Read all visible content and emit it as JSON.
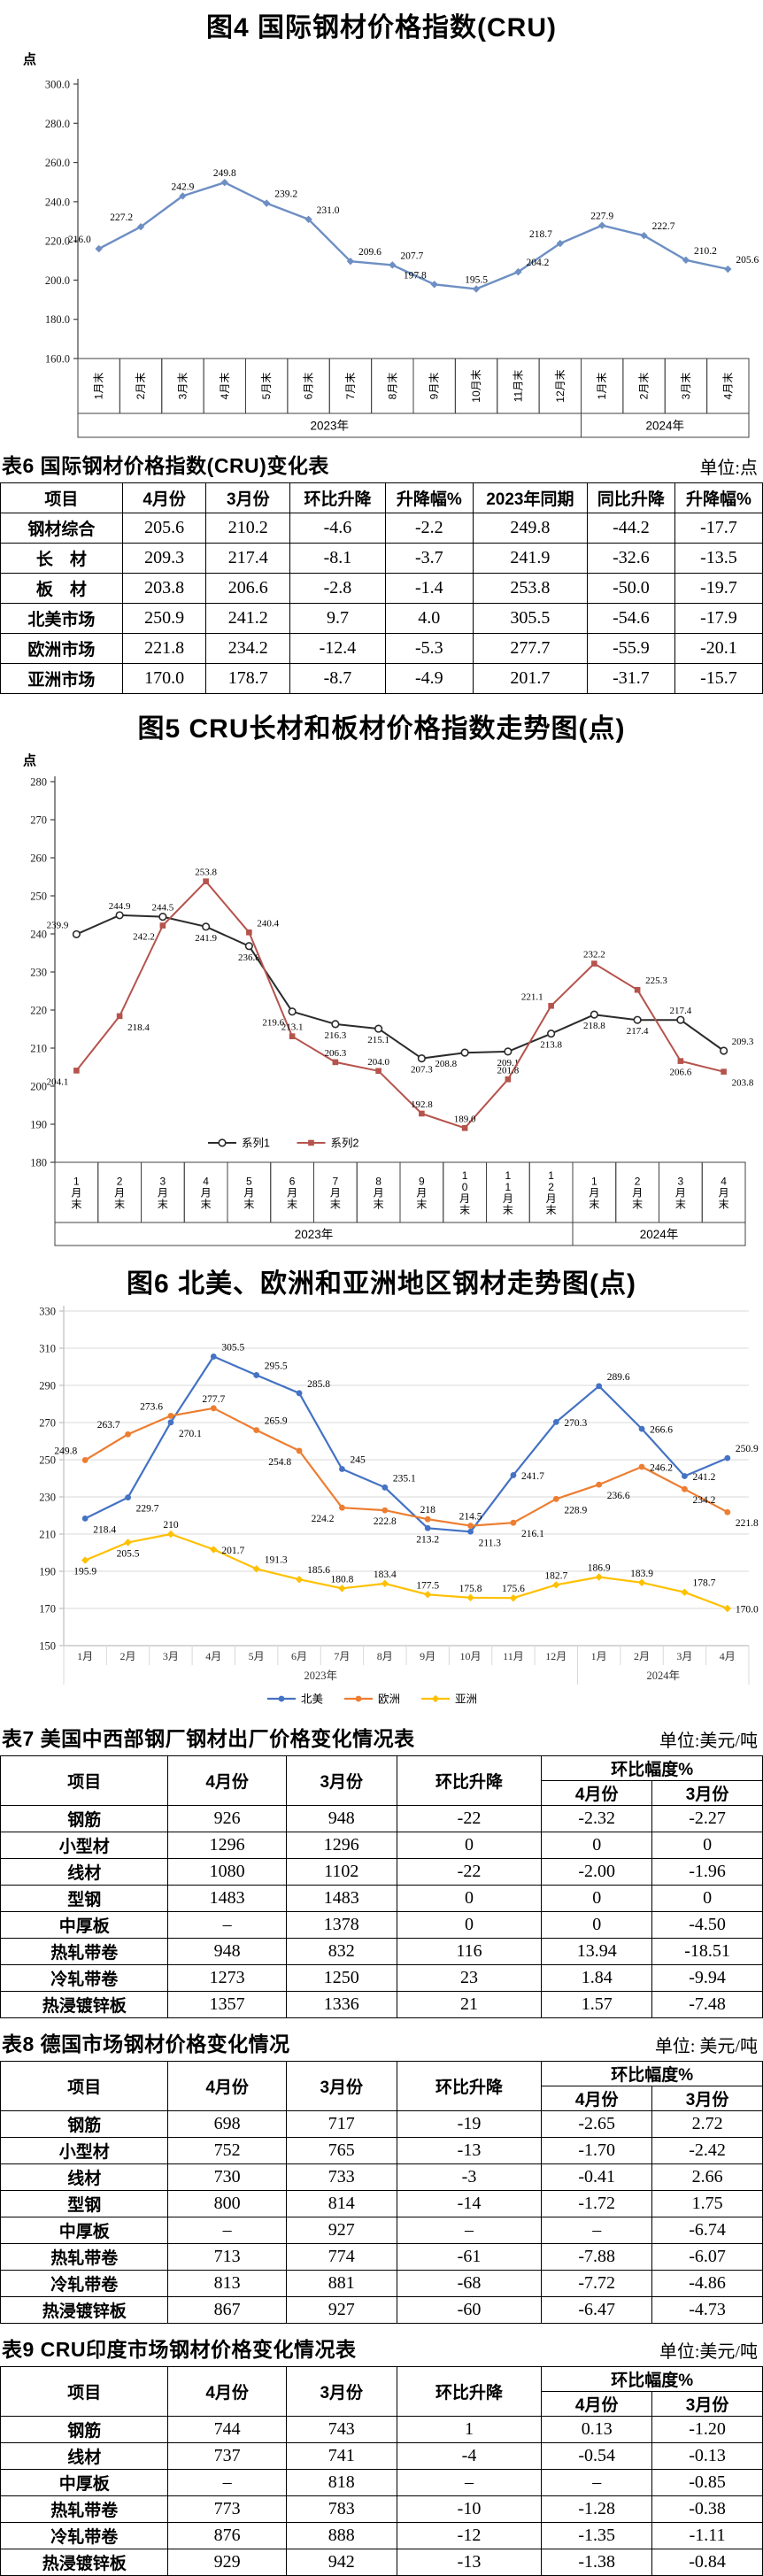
{
  "chart_data": {
    "fig4": {
      "type": "line",
      "title": "图4  国际钢材价格指数(CRU)",
      "unit": "点",
      "y_ticks": [
        "300.0",
        "280.0",
        "260.0",
        "240.0",
        "220.0",
        "200.0",
        "180.0",
        "160.0"
      ],
      "x_months_2023": [
        "1月末",
        "2月末",
        "3月末",
        "4月末",
        "5月末",
        "6月末",
        "7月末",
        "8月末",
        "9月末",
        "10月末",
        "11月末",
        "12月末"
      ],
      "x_months_2024": [
        "1月末",
        "2月末",
        "3月末",
        "4月末"
      ],
      "years": [
        {
          "label": "2023年",
          "span": 12
        },
        {
          "label": "2024年",
          "span": 4
        }
      ],
      "series": [
        {
          "name": "国际钢材价格指数",
          "color": "#6d8fc3",
          "marker": "diamond",
          "values": [
            216.0,
            227.2,
            242.9,
            249.8,
            239.2,
            231.0,
            209.6,
            207.7,
            197.8,
            195.5,
            204.2,
            218.7,
            227.9,
            222.7,
            210.2,
            205.6
          ],
          "labels": [
            "216.0",
            "227.2",
            "242.9",
            "249.8",
            "239.2",
            "231.0",
            "209.6",
            "207.7",
            "197.8",
            "195.5",
            "204.2",
            "218.7",
            "227.9",
            "222.7",
            "210.2",
            "205.6"
          ],
          "label_pos": [
            "al",
            "al",
            "a",
            "a",
            "ar",
            "ar",
            "ar",
            "ar",
            "al",
            "a",
            "ar",
            "al",
            "a",
            "ar",
            "ar",
            "ar"
          ]
        }
      ]
    },
    "fig5": {
      "type": "line",
      "title": "图5  CRU长材和板材价格指数走势图(点)",
      "unit": "点",
      "y_ticks": [
        "280",
        "270",
        "260",
        "250",
        "240",
        "230",
        "220",
        "210",
        "200",
        "190",
        "180"
      ],
      "x_months_2023": [
        "1月末",
        "2月末",
        "3月末",
        "4月末",
        "5月末",
        "6月末",
        "7月末",
        "8月末",
        "9月末",
        "10月末",
        "11月末",
        "12月末"
      ],
      "x_months_2024": [
        "1月末",
        "2月末",
        "3月末",
        "4月末"
      ],
      "years": [
        {
          "label": "2023年",
          "span": 12
        },
        {
          "label": "2024年",
          "span": 4
        }
      ],
      "series": [
        {
          "name": "系列1",
          "color": "#2b2b2b",
          "marker": "ocircle",
          "values": [
            239.9,
            244.9,
            244.5,
            241.9,
            236.8,
            219.6,
            216.3,
            215.1,
            207.3,
            208.8,
            209.1,
            213.8,
            218.8,
            217.4,
            217.4,
            209.3
          ],
          "labels": [
            "239.9",
            "244.9",
            "244.5",
            "241.9",
            "236.8",
            "219.6",
            "216.3",
            "215.1",
            "207.3",
            "208.8",
            "209.1",
            "213.8",
            "218.8",
            "217.4",
            "217.4",
            "209.3"
          ],
          "label_pos": [
            "al",
            "a",
            "a",
            "b",
            "b",
            "bl",
            "b",
            "b",
            "b",
            "bl",
            "b",
            "b",
            "b",
            "b",
            "a",
            "ar"
          ]
        },
        {
          "name": "系列2",
          "color": "#b5534c",
          "marker": "square",
          "values": [
            204.1,
            218.4,
            242.2,
            253.8,
            240.4,
            213.1,
            206.3,
            204.0,
            192.8,
            189.0,
            201.8,
            221.1,
            232.2,
            225.3,
            206.6,
            203.8
          ],
          "labels": [
            "204.1",
            "218.4",
            "242.2",
            "253.8",
            "240.4",
            "213.1",
            "206.3",
            "204.0",
            "192.8",
            "189.0",
            "201.8",
            "221.1",
            "232.2",
            "225.3",
            "206.6",
            "203.8"
          ],
          "label_pos": [
            "bl",
            "br",
            "bl",
            "a",
            "ar",
            "a",
            "a",
            "a",
            "a",
            "a",
            "a",
            "al",
            "a",
            "ar",
            "b",
            "br"
          ]
        }
      ]
    },
    "fig6": {
      "type": "line",
      "title": "图6  北美、欧洲和亚洲地区钢材走势图(点)",
      "unit": "",
      "y_ticks": [
        "330",
        "310",
        "290",
        "270",
        "250",
        "230",
        "210",
        "190",
        "170",
        "150"
      ],
      "x_months_2023": [
        "1月",
        "2月",
        "3月",
        "4月",
        "5月",
        "6月",
        "7月",
        "8月",
        "9月",
        "10月",
        "11月",
        "12月"
      ],
      "x_months_2024": [
        "1月",
        "2月",
        "3月",
        "4月"
      ],
      "years": [
        {
          "label": "2023年",
          "span": 12
        },
        {
          "label": "2024年",
          "span": 4
        }
      ],
      "series": [
        {
          "name": "北美",
          "color": "#4472c4",
          "marker": "circle",
          "values": [
            218.4,
            229.7,
            270.1,
            305.5,
            295.5,
            285.8,
            245,
            235.1,
            213.2,
            211.3,
            241.7,
            270.3,
            289.6,
            266.6,
            241.2,
            250.9
          ],
          "labels": [
            "218.4",
            "229.7",
            "270.1",
            "305.5",
            "295.5",
            "285.8",
            "245",
            "235.1",
            "213.2",
            "211.3",
            "241.7",
            "270.3",
            "289.6",
            "266.6",
            "241.2",
            "250.9"
          ],
          "label_pos": [
            "br",
            "br",
            "br",
            "ar",
            "ar",
            "ar",
            "ar",
            "ar",
            "b",
            "br",
            "r",
            "r",
            "ar",
            "r",
            "r",
            "ar"
          ]
        },
        {
          "name": "欧洲",
          "color": "#ed7d31",
          "marker": "circle",
          "values": [
            249.8,
            263.7,
            273.6,
            277.7,
            265.9,
            254.8,
            224.2,
            222.8,
            218,
            214.5,
            216.1,
            228.9,
            236.6,
            246.2,
            234.2,
            221.8
          ],
          "labels": [
            "249.8",
            "263.7",
            "273.6",
            "277.7",
            "265.9",
            "254.8",
            "224.2",
            "222.8",
            "218",
            "214.5",
            "216.1",
            "228.9",
            "236.6",
            "246.2",
            "234.2",
            "221.8"
          ],
          "label_pos": [
            "al",
            "al",
            "al",
            "a",
            "ar",
            "bl",
            "bl",
            "b",
            "a",
            "a",
            "br",
            "br",
            "br",
            "r",
            "br",
            "br"
          ]
        },
        {
          "name": "亚洲",
          "color": "#ffc000",
          "marker": "diamond",
          "values": [
            195.9,
            205.5,
            210,
            201.7,
            191.3,
            185.6,
            180.8,
            183.4,
            177.5,
            175.8,
            175.6,
            182.7,
            186.9,
            183.9,
            178.7,
            170.0
          ],
          "labels": [
            "195.9",
            "205.5",
            "210",
            "201.7",
            "191.3",
            "185.6",
            "180.8",
            "183.4",
            "177.5",
            "175.8",
            "175.6",
            "182.7",
            "186.9",
            "183.9",
            "178.7",
            "170.0"
          ],
          "label_pos": [
            "b",
            "b",
            "a",
            "r",
            "ar",
            "ar",
            "a",
            "a",
            "a",
            "a",
            "a",
            "a",
            "a",
            "a",
            "ar",
            "r"
          ]
        }
      ]
    }
  },
  "tables": {
    "table6": {
      "title": "表6  国际钢材价格指数(CRU)变化表",
      "unit": "单位:点",
      "columns": [
        "项目",
        "4月份",
        "3月份",
        "环比升降",
        "升降幅%",
        "2023年同期",
        "同比升降",
        "升降幅%"
      ],
      "col_widths": [
        "16%",
        "11%",
        "11%",
        "12.5%",
        "11.5%",
        "15%",
        "11.5%",
        "11.5%"
      ],
      "rows": [
        [
          "钢材综合",
          "205.6",
          "210.2",
          "-4.6",
          "-2.2",
          "249.8",
          "-44.2",
          "-17.7"
        ],
        [
          "长　材",
          "209.3",
          "217.4",
          "-8.1",
          "-3.7",
          "241.9",
          "-32.6",
          "-13.5"
        ],
        [
          "板　材",
          "203.8",
          "206.6",
          "-2.8",
          "-1.4",
          "253.8",
          "-50.0",
          "-19.7"
        ],
        [
          "北美市场",
          "250.9",
          "241.2",
          "9.7",
          "4.0",
          "305.5",
          "-54.6",
          "-17.9"
        ],
        [
          "欧洲市场",
          "221.8",
          "234.2",
          "-12.4",
          "-5.3",
          "277.7",
          "-55.9",
          "-20.1"
        ],
        [
          "亚洲市场",
          "170.0",
          "178.7",
          "-8.7",
          "-4.9",
          "201.7",
          "-31.7",
          "-15.7"
        ]
      ]
    },
    "table7": {
      "title": "表7  美国中西部钢厂钢材出厂价格变化情况表",
      "unit": "单位:美元/吨",
      "header": {
        "cols": [
          "项目",
          "4月份",
          "3月份",
          "环比升降"
        ],
        "group": "环比幅度%",
        "group_cols": [
          "4月份",
          "3月份"
        ]
      },
      "col_widths": [
        "22%",
        "15.5%",
        "14.5%",
        "19%",
        "14.5%",
        "14.5%"
      ],
      "rows": [
        [
          "钢筋",
          "926",
          "948",
          "-22",
          "-2.32",
          "-2.27"
        ],
        [
          "小型材",
          "1296",
          "1296",
          "0",
          "0",
          "0"
        ],
        [
          "线材",
          "1080",
          "1102",
          "-22",
          "-2.00",
          "-1.96"
        ],
        [
          "型钢",
          "1483",
          "1483",
          "0",
          "0",
          "0"
        ],
        [
          "中厚板",
          "–",
          "1378",
          "0",
          "0",
          "-4.50"
        ],
        [
          "热轧带卷",
          "948",
          "832",
          "116",
          "13.94",
          "-18.51"
        ],
        [
          "冷轧带卷",
          "1273",
          "1250",
          "23",
          "1.84",
          "-9.94"
        ],
        [
          "热浸镀锌板",
          "1357",
          "1336",
          "21",
          "1.57",
          "-7.48"
        ]
      ]
    },
    "table8": {
      "title": "表8  德国市场钢材价格变化情况",
      "unit": "单位: 美元/吨",
      "header": {
        "cols": [
          "项目",
          "4月份",
          "3月份",
          "环比升降"
        ],
        "group": "环比幅度%",
        "group_cols": [
          "4月份",
          "3月份"
        ]
      },
      "col_widths": [
        "22%",
        "15.5%",
        "14.5%",
        "19%",
        "14.5%",
        "14.5%"
      ],
      "rows": [
        [
          "钢筋",
          "698",
          "717",
          "-19",
          "-2.65",
          "2.72"
        ],
        [
          "小型材",
          "752",
          "765",
          "-13",
          "-1.70",
          "-2.42"
        ],
        [
          "线材",
          "730",
          "733",
          "-3",
          "-0.41",
          "2.66"
        ],
        [
          "型钢",
          "800",
          "814",
          "-14",
          "-1.72",
          "1.75"
        ],
        [
          "中厚板",
          "–",
          "927",
          "–",
          "–",
          "-6.74"
        ],
        [
          "热轧带卷",
          "713",
          "774",
          "-61",
          "-7.88",
          "-6.07"
        ],
        [
          "冷轧带卷",
          "813",
          "881",
          "-68",
          "-7.72",
          "-4.86"
        ],
        [
          "热浸镀锌板",
          "867",
          "927",
          "-60",
          "-6.47",
          "-4.73"
        ]
      ]
    },
    "table9": {
      "title": "表9  CRU印度市场钢材价格变化情况表",
      "unit": "单位:美元/吨",
      "header": {
        "cols": [
          "项目",
          "4月份",
          "3月份",
          "环比升降"
        ],
        "group": "环比幅度%",
        "group_cols": [
          "4月份",
          "3月份"
        ]
      },
      "col_widths": [
        "22%",
        "15.5%",
        "14.5%",
        "19%",
        "14.5%",
        "14.5%"
      ],
      "rows": [
        [
          "钢筋",
          "744",
          "743",
          "1",
          "0.13",
          "-1.20"
        ],
        [
          "线材",
          "737",
          "741",
          "-4",
          "-0.54",
          "-0.13"
        ],
        [
          "中厚板",
          "–",
          "818",
          "–",
          "–",
          "-0.85"
        ],
        [
          "热轧带卷",
          "773",
          "783",
          "-10",
          "-1.28",
          "-0.38"
        ],
        [
          "冷轧带卷",
          "876",
          "888",
          "-12",
          "-1.35",
          "-1.11"
        ],
        [
          "热浸镀锌板",
          "929",
          "942",
          "-13",
          "-1.38",
          "-0.84"
        ]
      ]
    }
  }
}
